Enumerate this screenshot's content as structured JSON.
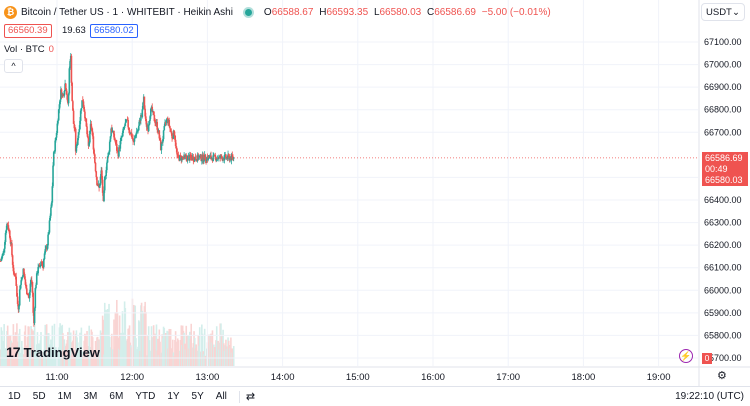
{
  "header": {
    "coin_glyph": "₿",
    "symbol": "Bitcoin / Tether US · 1 · WHITEBIT · Heikin Ashi",
    "ohlc": {
      "o_label": "O",
      "o": "66588.67",
      "h_label": "H",
      "h": "66593.35",
      "l_label": "L",
      "l": "66580.03",
      "c_label": "C",
      "c": "66586.69",
      "change": "−5.00 (−0.01%)"
    },
    "sell_price": "66560.39",
    "spread": "19.63",
    "buy_price": "66580.02",
    "volume_label": "Vol · BTC",
    "volume_value": "0",
    "collapse_glyph": "^",
    "currency": "USDT",
    "currency_arrow": "⌄"
  },
  "price_axis": {
    "labels": [
      "67100.00",
      "67000.00",
      "66900.00",
      "66800.00",
      "66700.00",
      "66500.00",
      "66400.00",
      "66300.00",
      "66200.00",
      "66100.00",
      "66000.00",
      "65900.00",
      "65800.00",
      "65700.00"
    ],
    "values": [
      67100,
      67000,
      66900,
      66800,
      66700,
      66500,
      66400,
      66300,
      66200,
      66100,
      66000,
      65900,
      65800,
      65700
    ],
    "current_price": "66586.69",
    "countdown": "00:49",
    "low_tag": "66580.03",
    "volume_tag": "0"
  },
  "time_axis": {
    "labels": [
      "11:00",
      "12:00",
      "13:00",
      "14:00",
      "15:00",
      "16:00",
      "17:00",
      "18:00",
      "19:00"
    ]
  },
  "branding": {
    "mark": "17",
    "name": "TradingView"
  },
  "bottom_bar": {
    "ranges": [
      "1D",
      "5D",
      "1M",
      "3M",
      "6M",
      "YTD",
      "1Y",
      "5Y",
      "All"
    ],
    "clock": "19:22:10 (UTC)"
  },
  "colors": {
    "up": "#26a69a",
    "down": "#ef5350",
    "grid": "#f0f3fa",
    "text": "#131722"
  },
  "chart_data": {
    "type": "candlestick",
    "y_range": [
      65700,
      67130
    ],
    "current_price": 66586.69,
    "price_path": [
      [
        0,
        66130
      ],
      [
        0.04,
        66170
      ],
      [
        0.07,
        66270
      ],
      [
        0.09,
        66300
      ],
      [
        0.12,
        66250
      ],
      [
        0.14,
        66200
      ],
      [
        0.16,
        66120
      ],
      [
        0.18,
        66060
      ],
      [
        0.2,
        66070
      ],
      [
        0.22,
        65950
      ],
      [
        0.24,
        65920
      ],
      [
        0.26,
        66030
      ],
      [
        0.28,
        66050
      ],
      [
        0.3,
        66090
      ],
      [
        0.32,
        66050
      ],
      [
        0.34,
        66000
      ],
      [
        0.36,
        65990
      ],
      [
        0.38,
        65960
      ],
      [
        0.4,
        66050
      ],
      [
        0.42,
        66030
      ],
      [
        0.44,
        65830
      ],
      [
        0.46,
        66000
      ],
      [
        0.48,
        66060
      ],
      [
        0.5,
        66110
      ],
      [
        0.52,
        66090
      ],
      [
        0.54,
        66140
      ],
      [
        0.56,
        66100
      ],
      [
        0.58,
        66150
      ],
      [
        0.6,
        66180
      ],
      [
        0.62,
        66200
      ],
      [
        0.64,
        66260
      ],
      [
        0.66,
        66330
      ],
      [
        0.68,
        66390
      ],
      [
        0.7,
        66580
      ],
      [
        0.72,
        66640
      ],
      [
        0.74,
        66690
      ],
      [
        0.77,
        66790
      ],
      [
        0.8,
        66880
      ],
      [
        0.83,
        66860
      ],
      [
        0.86,
        66920
      ],
      [
        0.88,
        66870
      ],
      [
        0.9,
        66800
      ],
      [
        0.91,
        66960
      ],
      [
        0.93,
        67060
      ],
      [
        0.95,
        66850
      ],
      [
        0.97,
        66740
      ],
      [
        0.99,
        66700
      ],
      [
        1.0,
        66610
      ],
      [
        1.02,
        66660
      ],
      [
        1.05,
        66740
      ],
      [
        1.07,
        66810
      ],
      [
        1.09,
        66850
      ],
      [
        1.12,
        66780
      ],
      [
        1.14,
        66720
      ],
      [
        1.17,
        66630
      ],
      [
        1.2,
        66740
      ],
      [
        1.22,
        66690
      ],
      [
        1.25,
        66580
      ],
      [
        1.28,
        66480
      ],
      [
        1.31,
        66450
      ],
      [
        1.34,
        66530
      ],
      [
        1.37,
        66360
      ],
      [
        1.38,
        66480
      ],
      [
        1.41,
        66560
      ],
      [
        1.44,
        66620
      ],
      [
        1.47,
        66720
      ],
      [
        1.5,
        66690
      ],
      [
        1.53,
        66650
      ],
      [
        1.56,
        66600
      ],
      [
        1.59,
        66650
      ],
      [
        1.62,
        66690
      ],
      [
        1.65,
        66730
      ],
      [
        1.68,
        66750
      ],
      [
        1.71,
        66710
      ],
      [
        1.74,
        66690
      ],
      [
        1.77,
        66650
      ],
      [
        1.8,
        66700
      ],
      [
        1.83,
        66710
      ],
      [
        1.86,
        66770
      ],
      [
        1.88,
        66770
      ],
      [
        1.9,
        66860
      ],
      [
        1.93,
        66740
      ],
      [
        1.96,
        66720
      ],
      [
        1.99,
        66790
      ],
      [
        2.01,
        66800
      ],
      [
        2.04,
        66760
      ],
      [
        2.07,
        66740
      ],
      [
        2.1,
        66700
      ],
      [
        2.13,
        66630
      ],
      [
        2.16,
        66680
      ],
      [
        2.19,
        66740
      ],
      [
        2.22,
        66760
      ],
      [
        2.25,
        66720
      ],
      [
        2.28,
        66680
      ],
      [
        2.31,
        66700
      ],
      [
        2.33,
        66640
      ],
      [
        2.35,
        66587
      ]
    ],
    "time_labels": [
      "11:00",
      "12:00",
      "13:00",
      "14:00",
      "15:00",
      "16:00",
      "17:00",
      "18:00",
      "19:00"
    ]
  }
}
